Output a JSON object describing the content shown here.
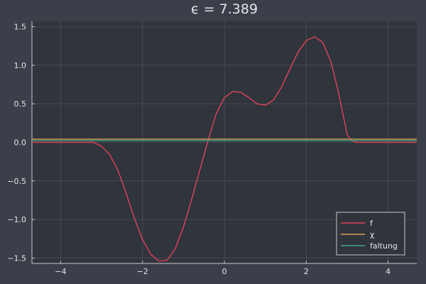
{
  "chart_data": {
    "type": "line",
    "title": "ϵ = 7.389",
    "xlabel": "",
    "ylabel": "",
    "xlim": [
      -4.7,
      4.7
    ],
    "ylim": [
      -1.57,
      1.57
    ],
    "xticks": [
      -4,
      -2,
      0,
      2,
      4
    ],
    "xtick_labels": [
      "−4",
      "−2",
      "0",
      "2",
      "4"
    ],
    "yticks": [
      -1.5,
      -1.0,
      -0.5,
      0.0,
      0.5,
      1.0,
      1.5
    ],
    "ytick_labels": [
      "−1.5",
      "−1.0",
      "−0.5",
      "0.0",
      "0.5",
      "1.0",
      "1.5"
    ],
    "grid": true,
    "legend_position": "bottom-right",
    "series": [
      {
        "name": "f",
        "color": "#e0435a",
        "x": [
          -4.7,
          -3.2,
          -3.0,
          -2.8,
          -2.6,
          -2.4,
          -2.2,
          -2.0,
          -1.8,
          -1.6,
          -1.4,
          -1.2,
          -1.0,
          -0.8,
          -0.6,
          -0.4,
          -0.2,
          0.0,
          0.2,
          0.4,
          0.6,
          0.8,
          1.0,
          1.2,
          1.4,
          1.6,
          1.8,
          2.0,
          2.2,
          2.4,
          2.6,
          2.8,
          3.0,
          3.1,
          3.2,
          4.7
        ],
        "y": [
          0.0,
          0.0,
          -0.05,
          -0.16,
          -0.36,
          -0.66,
          -0.98,
          -1.26,
          -1.45,
          -1.54,
          -1.53,
          -1.38,
          -1.1,
          -0.74,
          -0.36,
          0.02,
          0.37,
          0.58,
          0.66,
          0.65,
          0.58,
          0.5,
          0.48,
          0.55,
          0.72,
          0.95,
          1.17,
          1.32,
          1.37,
          1.3,
          1.05,
          0.62,
          0.1,
          0.03,
          0.0,
          0.0
        ]
      },
      {
        "name": "χ",
        "color": "#d4a256",
        "x": [
          -4.7,
          4.7
        ],
        "y": [
          0.042,
          0.042
        ]
      },
      {
        "name": "faltung",
        "color": "#3fa888",
        "x": [
          -4.7,
          4.7
        ],
        "y": [
          0.024,
          0.024
        ]
      }
    ]
  }
}
